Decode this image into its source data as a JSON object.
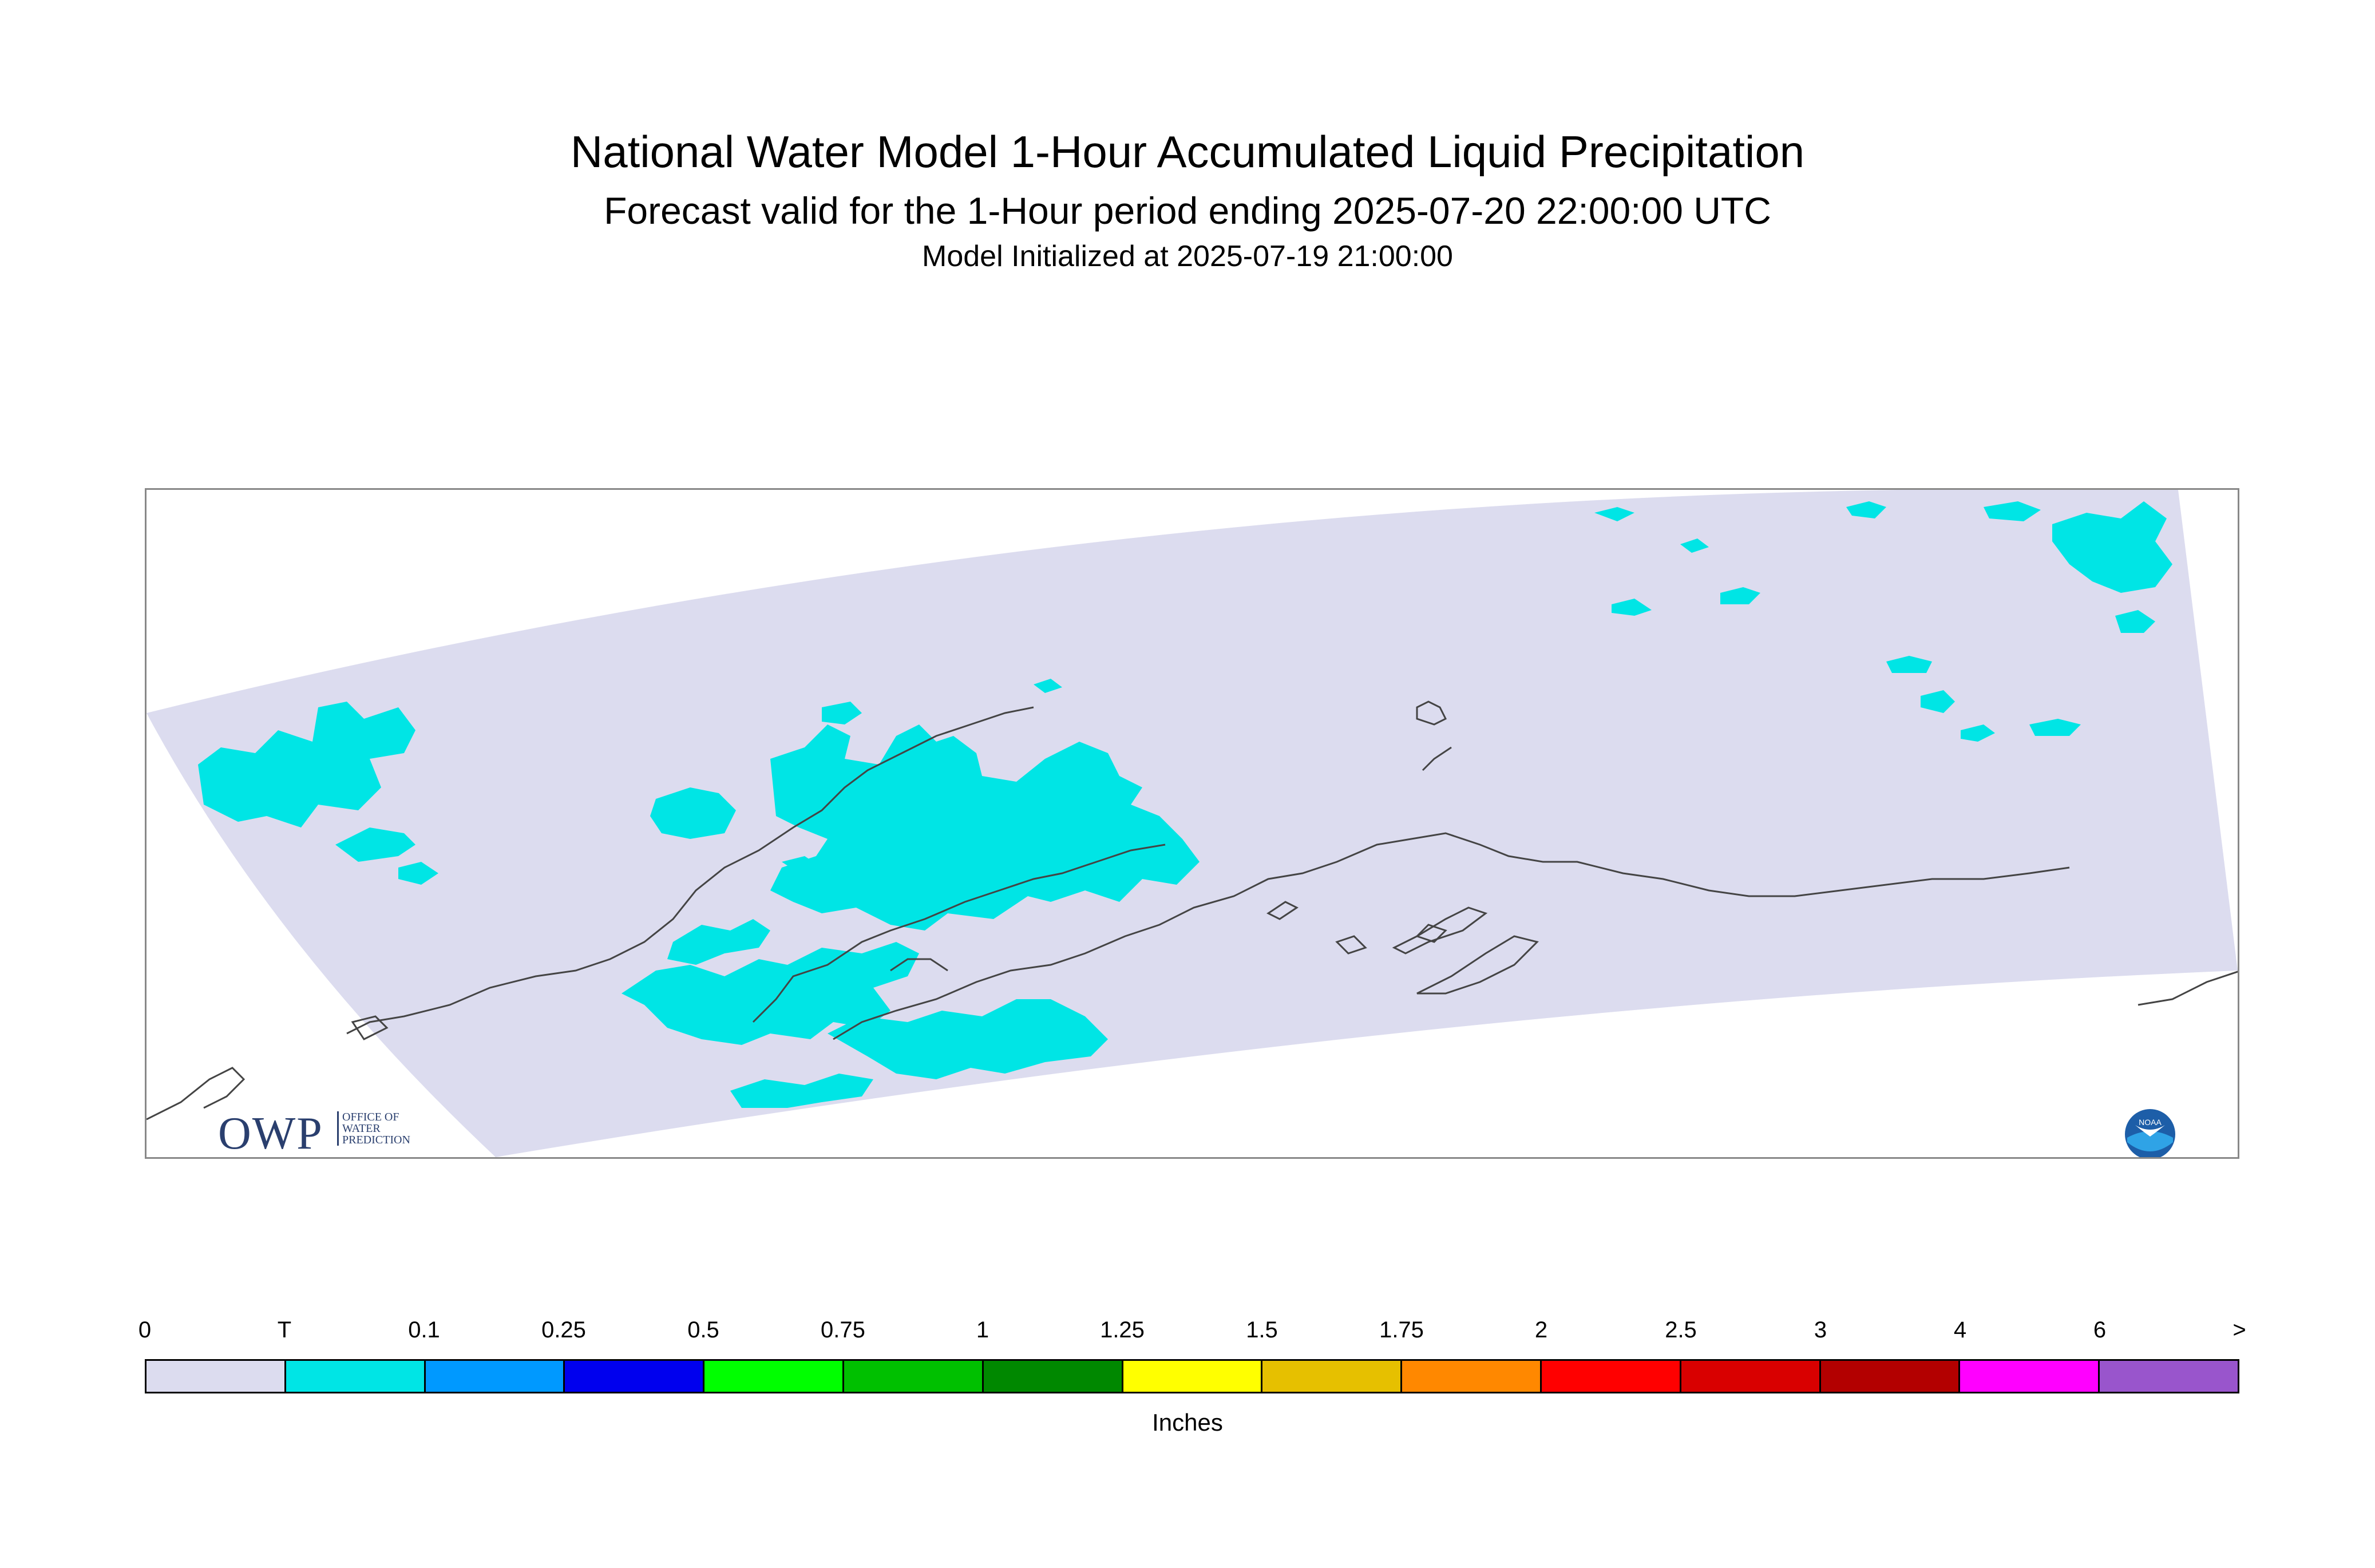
{
  "header": {
    "title": "National Water Model 1-Hour Accumulated Liquid Precipitation",
    "subtitle": "Forecast valid for the 1-Hour period ending 2025-07-20 22:00:00 UTC",
    "init": "Model Initialized at 2025-07-19 21:00:00"
  },
  "map": {
    "domain_fill_color": "#dcdcef",
    "trace_fill_color": "#00e5e5",
    "coastline_color": "#444444"
  },
  "logos": {
    "owp": {
      "mark": "OWP",
      "line1": "OFFICE OF",
      "line2": "WATER",
      "line3": "PREDICTION"
    },
    "noaa": {
      "text": "NOAA"
    }
  },
  "legend": {
    "tick_labels": [
      "0",
      "T",
      "0.1",
      "0.25",
      "0.5",
      "0.75",
      "1",
      "1.25",
      "1.5",
      "1.75",
      "2",
      "2.5",
      "3",
      "4",
      "6",
      ">"
    ],
    "colors": [
      "#dcdcef",
      "#00e5e5",
      "#0099ff",
      "#0000ee",
      "#00ff00",
      "#00c000",
      "#008800",
      "#ffff00",
      "#e6c000",
      "#ff8800",
      "#ff0000",
      "#d90000",
      "#b30000",
      "#ff00ff",
      "#9955cc"
    ],
    "unit": "Inches"
  }
}
